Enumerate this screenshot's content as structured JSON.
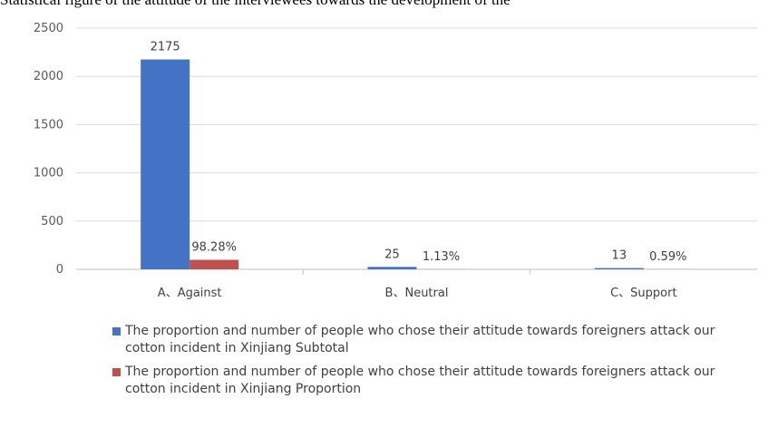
{
  "header_strip_text": "Statistical figure of the attitude of the interviewees towards the development of the",
  "chart_data": {
    "type": "bar",
    "categories": [
      "A、Against",
      "B、Neutral",
      "C、Support"
    ],
    "series": [
      {
        "name": "The proportion and number of people who chose their attitude towards foreigners attack our cotton incident in Xinjiang Subtotal",
        "values": [
          2175,
          25,
          13
        ],
        "labels": [
          "2175",
          "25",
          "13"
        ],
        "color": "#4472C4"
      },
      {
        "name": "The proportion and number of people who chose their attitude towards foreigners attack our cotton incident in Xinjiang Proportion",
        "values": [
          98.28,
          1.13,
          0.59
        ],
        "labels": [
          "98.28%",
          "1.13%",
          "0.59%"
        ],
        "color": "#C0504D"
      }
    ],
    "yticks": [
      "0",
      "500",
      "1000",
      "1500",
      "2000",
      "2500"
    ],
    "ylim": [
      0,
      2500
    ],
    "grid": true,
    "legend_position": "bottom"
  }
}
